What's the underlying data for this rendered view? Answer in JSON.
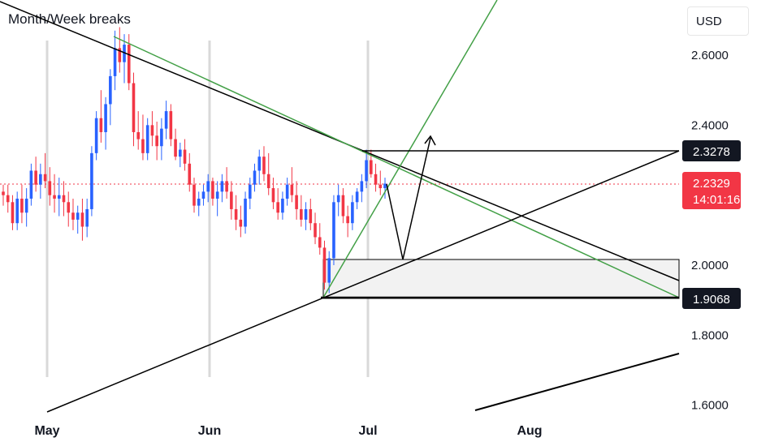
{
  "header": {
    "title": "Month/Week breaks",
    "currency": "USD"
  },
  "price_tags": {
    "resistance": "2.3278",
    "last": "2.2329",
    "countdown": "14:01:16",
    "support": "1.9068"
  },
  "colors": {
    "up": "#2962ff",
    "down": "#f23645",
    "trendline": "#000000",
    "green_line": "#4caf50",
    "tag": "#131722",
    "last_tag": "#f23645",
    "zone": "#f2f2f2"
  },
  "chart_data": {
    "type": "candlestick",
    "title": "Month/Week breaks",
    "ylim": [
      1.6,
      2.7
    ],
    "y_ticks": [
      "2.6000",
      "2.4000",
      "2.0000",
      "1.8000",
      "1.6000"
    ],
    "x_ticks": [
      "May",
      "Jun",
      "Jul",
      "Aug"
    ],
    "horizontal_levels": [
      2.3278,
      2.2329,
      2.0,
      1.9068
    ],
    "candles_ohlc": [
      [
        2.21,
        2.23,
        2.17,
        2.2
      ],
      [
        2.2,
        2.23,
        2.15,
        2.18
      ],
      [
        2.18,
        2.2,
        2.1,
        2.12
      ],
      [
        2.12,
        2.21,
        2.1,
        2.19
      ],
      [
        2.19,
        2.23,
        2.12,
        2.15
      ],
      [
        2.15,
        2.22,
        2.11,
        2.19
      ],
      [
        2.19,
        2.29,
        2.17,
        2.27
      ],
      [
        2.27,
        2.31,
        2.21,
        2.23
      ],
      [
        2.23,
        2.29,
        2.19,
        2.26
      ],
      [
        2.26,
        2.32,
        2.22,
        2.24
      ],
      [
        2.24,
        2.28,
        2.17,
        2.2
      ],
      [
        2.2,
        2.26,
        2.15,
        2.19
      ],
      [
        2.19,
        2.25,
        2.14,
        2.2
      ],
      [
        2.2,
        2.24,
        2.14,
        2.18
      ],
      [
        2.18,
        2.21,
        2.11,
        2.15
      ],
      [
        2.15,
        2.19,
        2.1,
        2.13
      ],
      [
        2.13,
        2.17,
        2.09,
        2.15
      ],
      [
        2.15,
        2.19,
        2.07,
        2.11
      ],
      [
        2.11,
        2.19,
        2.08,
        2.16
      ],
      [
        2.16,
        2.34,
        2.14,
        2.32
      ],
      [
        2.32,
        2.44,
        2.3,
        2.42
      ],
      [
        2.42,
        2.5,
        2.35,
        2.38
      ],
      [
        2.38,
        2.48,
        2.33,
        2.46
      ],
      [
        2.46,
        2.56,
        2.4,
        2.54
      ],
      [
        2.54,
        2.67,
        2.5,
        2.62
      ],
      [
        2.62,
        2.68,
        2.55,
        2.58
      ],
      [
        2.58,
        2.66,
        2.52,
        2.63
      ],
      [
        2.63,
        2.66,
        2.5,
        2.52
      ],
      [
        2.52,
        2.55,
        2.34,
        2.38
      ],
      [
        2.38,
        2.44,
        2.33,
        2.36
      ],
      [
        2.36,
        2.43,
        2.3,
        2.32
      ],
      [
        2.32,
        2.42,
        2.3,
        2.4
      ],
      [
        2.4,
        2.44,
        2.34,
        2.37
      ],
      [
        2.37,
        2.41,
        2.3,
        2.34
      ],
      [
        2.34,
        2.42,
        2.3,
        2.39
      ],
      [
        2.39,
        2.47,
        2.36,
        2.44
      ],
      [
        2.44,
        2.46,
        2.34,
        2.36
      ],
      [
        2.36,
        2.39,
        2.3,
        2.31
      ],
      [
        2.31,
        2.35,
        2.28,
        2.33
      ],
      [
        2.33,
        2.36,
        2.27,
        2.29
      ],
      [
        2.29,
        2.32,
        2.21,
        2.23
      ],
      [
        2.23,
        2.25,
        2.15,
        2.17
      ],
      [
        2.17,
        2.21,
        2.14,
        2.19
      ],
      [
        2.19,
        2.23,
        2.17,
        2.21
      ],
      [
        2.21,
        2.26,
        2.18,
        2.24
      ],
      [
        2.24,
        2.25,
        2.17,
        2.19
      ],
      [
        2.19,
        2.24,
        2.14,
        2.21
      ],
      [
        2.21,
        2.26,
        2.18,
        2.24
      ],
      [
        2.24,
        2.28,
        2.19,
        2.21
      ],
      [
        2.21,
        2.24,
        2.13,
        2.16
      ],
      [
        2.16,
        2.2,
        2.1,
        2.13
      ],
      [
        2.13,
        2.17,
        2.08,
        2.11
      ],
      [
        2.11,
        2.21,
        2.09,
        2.19
      ],
      [
        2.19,
        2.25,
        2.16,
        2.23
      ],
      [
        2.23,
        2.29,
        2.21,
        2.27
      ],
      [
        2.27,
        2.33,
        2.23,
        2.31
      ],
      [
        2.31,
        2.34,
        2.24,
        2.26
      ],
      [
        2.26,
        2.32,
        2.2,
        2.22
      ],
      [
        2.22,
        2.25,
        2.16,
        2.18
      ],
      [
        2.18,
        2.22,
        2.13,
        2.15
      ],
      [
        2.15,
        2.21,
        2.13,
        2.19
      ],
      [
        2.19,
        2.25,
        2.17,
        2.23
      ],
      [
        2.23,
        2.28,
        2.18,
        2.2
      ],
      [
        2.2,
        2.24,
        2.13,
        2.16
      ],
      [
        2.16,
        2.2,
        2.11,
        2.13
      ],
      [
        2.13,
        2.18,
        2.1,
        2.16
      ],
      [
        2.16,
        2.19,
        2.1,
        2.12
      ],
      [
        2.12,
        2.15,
        2.06,
        2.08
      ],
      [
        2.08,
        2.12,
        2.03,
        2.05
      ],
      [
        2.05,
        2.07,
        1.93,
        1.95
      ],
      [
        1.95,
        2.04,
        1.92,
        2.02
      ],
      [
        2.02,
        2.2,
        2.0,
        2.18
      ],
      [
        2.18,
        2.23,
        2.14,
        2.2
      ],
      [
        2.2,
        2.22,
        2.12,
        2.14
      ],
      [
        2.14,
        2.17,
        2.08,
        2.12
      ],
      [
        2.12,
        2.2,
        2.1,
        2.18
      ],
      [
        2.18,
        2.22,
        2.16,
        2.21
      ],
      [
        2.21,
        2.26,
        2.18,
        2.24
      ],
      [
        2.24,
        2.33,
        2.22,
        2.3
      ],
      [
        2.3,
        2.33,
        2.25,
        2.26
      ],
      [
        2.26,
        2.29,
        2.21,
        2.23
      ],
      [
        2.23,
        2.27,
        2.2,
        2.22
      ],
      [
        2.22,
        2.25,
        2.19,
        2.2329
      ]
    ]
  }
}
